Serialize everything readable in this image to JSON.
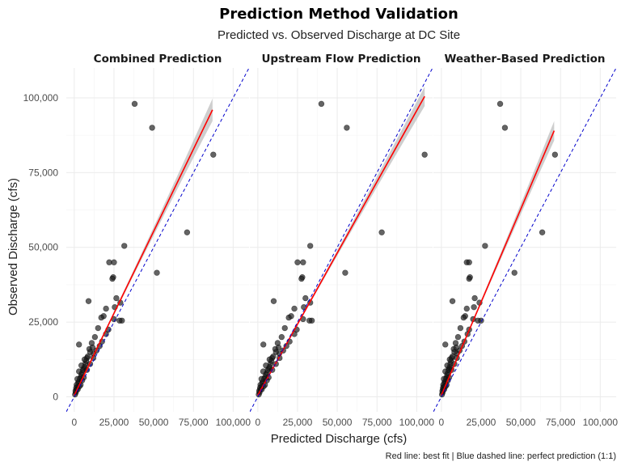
{
  "chart_data": {
    "type": "scatter",
    "title": "Prediction Method Validation",
    "subtitle": "Predicted vs. Observed Discharge at DC Site",
    "xlabel": "Predicted Discharge (cfs)",
    "ylabel": "Observed Discharge (cfs)",
    "caption": "Red line: best fit | Blue dashed line: perfect prediction (1:1)",
    "xlim": [
      -5000,
      110000
    ],
    "ylim": [
      -5000,
      110000
    ],
    "x_ticks": [
      0,
      25000,
      50000,
      75000,
      100000
    ],
    "x_tick_labels": [
      "0",
      "25,000",
      "50,000",
      "75,000",
      "100,000"
    ],
    "y_ticks": [
      0,
      25000,
      50000,
      75000,
      100000
    ],
    "y_tick_labels": [
      "0",
      "25,000",
      "50,000",
      "75,000",
      "100,000"
    ],
    "colors": {
      "points": "#1a1a1a",
      "fit": "#ff0000",
      "ribbon": "#bdbdbd",
      "identity": "#0000cc"
    },
    "panels": [
      {
        "name": "Combined Prediction",
        "fit": {
          "x_start": 0,
          "y_start": 500,
          "x_end": 87000,
          "y_end": 96000
        },
        "ribbon_half_width_end": 3500,
        "points": [
          [
            38000,
            98000
          ],
          [
            49000,
            90000
          ],
          [
            87500,
            81000
          ],
          [
            71000,
            55000
          ],
          [
            52000,
            41500
          ],
          [
            31500,
            50500
          ],
          [
            22000,
            45000
          ],
          [
            25000,
            45000
          ],
          [
            24500,
            40000
          ],
          [
            24000,
            39500
          ],
          [
            9000,
            32000
          ],
          [
            26500,
            33000
          ],
          [
            29000,
            31500
          ],
          [
            25500,
            30000
          ],
          [
            20000,
            29500
          ],
          [
            18500,
            27000
          ],
          [
            17000,
            26500
          ],
          [
            25000,
            26000
          ],
          [
            30000,
            25500
          ],
          [
            28500,
            25500
          ],
          [
            3000,
            17500
          ],
          [
            15000,
            23000
          ],
          [
            13000,
            20000
          ],
          [
            11000,
            18000
          ],
          [
            9500,
            16000
          ],
          [
            12000,
            14500
          ],
          [
            14000,
            15500
          ],
          [
            16000,
            17000
          ],
          [
            17500,
            18500
          ],
          [
            20000,
            21000
          ],
          [
            21500,
            22500
          ],
          [
            8000,
            13000
          ],
          [
            7000,
            11000
          ],
          [
            6000,
            9500
          ],
          [
            5000,
            8000
          ],
          [
            4000,
            6500
          ],
          [
            3000,
            5000
          ],
          [
            2000,
            3500
          ],
          [
            1500,
            2500
          ],
          [
            1000,
            1500
          ],
          [
            500,
            800
          ],
          [
            2500,
            4800
          ],
          [
            3500,
            6000
          ],
          [
            4500,
            7500
          ],
          [
            5500,
            9000
          ],
          [
            6500,
            10000
          ],
          [
            7500,
            12000
          ],
          [
            8500,
            13500
          ],
          [
            10000,
            15000
          ],
          [
            11500,
            16500
          ],
          [
            4000,
            4000
          ],
          [
            6000,
            6500
          ],
          [
            8000,
            9000
          ],
          [
            10000,
            11000
          ],
          [
            12000,
            13000
          ],
          [
            1500,
            4000
          ],
          [
            2000,
            6000
          ],
          [
            3000,
            8500
          ],
          [
            4500,
            10500
          ],
          [
            6500,
            12500
          ],
          [
            800,
            2000
          ],
          [
            1200,
            3000
          ],
          [
            2200,
            2500
          ],
          [
            3200,
            3500
          ],
          [
            5000,
            5500
          ]
        ]
      },
      {
        "name": "Upstream Flow Prediction",
        "fit": {
          "x_start": 0,
          "y_start": 500,
          "x_end": 105000,
          "y_end": 100500
        },
        "ribbon_half_width_end": 3000,
        "points": [
          [
            40000,
            98000
          ],
          [
            56000,
            90000
          ],
          [
            105000,
            81000
          ],
          [
            78000,
            55000
          ],
          [
            55000,
            41500
          ],
          [
            33000,
            50500
          ],
          [
            25000,
            45000
          ],
          [
            28500,
            45000
          ],
          [
            28000,
            40000
          ],
          [
            27500,
            39500
          ],
          [
            10000,
            32000
          ],
          [
            30000,
            33000
          ],
          [
            33000,
            31500
          ],
          [
            29000,
            30000
          ],
          [
            23000,
            29500
          ],
          [
            21000,
            27000
          ],
          [
            19500,
            26500
          ],
          [
            28500,
            26000
          ],
          [
            34000,
            25500
          ],
          [
            32500,
            25500
          ],
          [
            3500,
            17500
          ],
          [
            17000,
            23000
          ],
          [
            15000,
            20000
          ],
          [
            12500,
            18000
          ],
          [
            11000,
            16000
          ],
          [
            13500,
            14500
          ],
          [
            16000,
            15500
          ],
          [
            18000,
            17000
          ],
          [
            20000,
            18500
          ],
          [
            23000,
            21000
          ],
          [
            24500,
            22500
          ],
          [
            9000,
            13000
          ],
          [
            8000,
            11000
          ],
          [
            7000,
            9500
          ],
          [
            5700,
            8000
          ],
          [
            4500,
            6500
          ],
          [
            3400,
            5000
          ],
          [
            2300,
            3500
          ],
          [
            1700,
            2500
          ],
          [
            1100,
            1500
          ],
          [
            600,
            800
          ],
          [
            2800,
            4800
          ],
          [
            4000,
            6000
          ],
          [
            5100,
            7500
          ],
          [
            6300,
            9000
          ],
          [
            7400,
            10000
          ],
          [
            8500,
            12000
          ],
          [
            9700,
            13500
          ],
          [
            11400,
            15000
          ],
          [
            13100,
            16500
          ],
          [
            4500,
            4000
          ],
          [
            6800,
            6500
          ],
          [
            9100,
            9000
          ],
          [
            11400,
            11000
          ],
          [
            13700,
            13000
          ],
          [
            1700,
            4000
          ],
          [
            2300,
            6000
          ],
          [
            3400,
            8500
          ],
          [
            5100,
            10500
          ],
          [
            7400,
            12500
          ],
          [
            900,
            2000
          ],
          [
            1400,
            3000
          ],
          [
            2500,
            2500
          ],
          [
            3600,
            3500
          ],
          [
            5700,
            5500
          ]
        ]
      },
      {
        "name": "Weather-Based Prediction",
        "fit": {
          "x_start": 0,
          "y_start": 500,
          "x_end": 71000,
          "y_end": 89000
        },
        "ribbon_half_width_end": 3000,
        "points": [
          [
            37000,
            98000
          ],
          [
            40000,
            90000
          ],
          [
            71500,
            81000
          ],
          [
            63500,
            55000
          ],
          [
            46000,
            41500
          ],
          [
            27500,
            50500
          ],
          [
            16000,
            45000
          ],
          [
            17500,
            45000
          ],
          [
            18000,
            40000
          ],
          [
            17500,
            39500
          ],
          [
            7000,
            32000
          ],
          [
            21000,
            33000
          ],
          [
            24000,
            31500
          ],
          [
            20500,
            30000
          ],
          [
            16000,
            29500
          ],
          [
            15000,
            27000
          ],
          [
            14000,
            26500
          ],
          [
            20000,
            26000
          ],
          [
            25000,
            25500
          ],
          [
            23000,
            25500
          ],
          [
            2500,
            17500
          ],
          [
            12000,
            23000
          ],
          [
            10500,
            20000
          ],
          [
            9000,
            18000
          ],
          [
            7800,
            16000
          ],
          [
            9800,
            14500
          ],
          [
            11500,
            15500
          ],
          [
            13000,
            17000
          ],
          [
            14500,
            18500
          ],
          [
            16500,
            21000
          ],
          [
            17500,
            22500
          ],
          [
            6500,
            13000
          ],
          [
            5700,
            11000
          ],
          [
            4900,
            9500
          ],
          [
            4100,
            8000
          ],
          [
            3300,
            6500
          ],
          [
            2500,
            5000
          ],
          [
            1600,
            3500
          ],
          [
            1200,
            2500
          ],
          [
            800,
            1500
          ],
          [
            400,
            800
          ],
          [
            2000,
            4800
          ],
          [
            2900,
            6000
          ],
          [
            3700,
            7500
          ],
          [
            4500,
            9000
          ],
          [
            5300,
            10000
          ],
          [
            6100,
            12000
          ],
          [
            7000,
            13500
          ],
          [
            8200,
            15000
          ],
          [
            9400,
            16500
          ],
          [
            3300,
            4000
          ],
          [
            4900,
            6500
          ],
          [
            6500,
            9000
          ],
          [
            8200,
            11000
          ],
          [
            9800,
            13000
          ],
          [
            1200,
            4000
          ],
          [
            1600,
            6000
          ],
          [
            2500,
            8500
          ],
          [
            3700,
            10500
          ],
          [
            5300,
            12500
          ],
          [
            650,
            2000
          ],
          [
            1000,
            3000
          ],
          [
            1800,
            2500
          ],
          [
            2600,
            3500
          ],
          [
            4100,
            5500
          ]
        ]
      }
    ]
  }
}
